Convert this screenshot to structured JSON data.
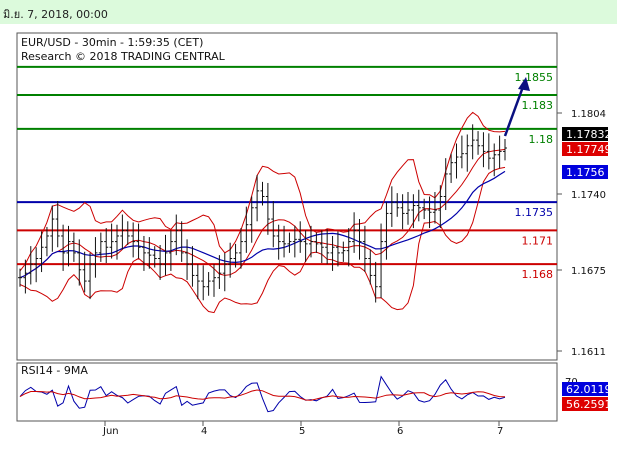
{
  "header": {
    "date_text": "มิ.ย. 7, 2018, 00:00"
  },
  "chart": {
    "title_line1": "EUR/USD - 30min - 1:59:35 (CET)",
    "title_line2": "Research © 2018 TRADING CENTRAL",
    "rsi_title": "RSI14 - 9MA"
  },
  "chart_data": [
    {
      "type": "candlestick",
      "title": "EUR/USD - 30min - 1:59:35 (CET)",
      "ylim": [
        1.1595,
        1.1885
      ],
      "price_ticks": [
        "1.1804",
        "1.1740",
        "1.1675",
        "1.1611"
      ],
      "x_tick_labels": [
        "Jun",
        "4",
        "5",
        "6",
        "7"
      ],
      "levels": [
        {
          "value": 1.1855,
          "label": "1.1855",
          "color": "#008000"
        },
        {
          "value": 1.183,
          "label": "1.183",
          "color": "#008000"
        },
        {
          "value": 1.18,
          "label": "1.18",
          "color": "#008000"
        },
        {
          "value": 1.1735,
          "label": "1.1735",
          "color": "#0000aa"
        },
        {
          "value": 1.171,
          "label": "1.171",
          "color": "#cc0000"
        },
        {
          "value": 1.168,
          "label": "1.168",
          "color": "#cc0000"
        }
      ],
      "current_price": {
        "value": 1.17832,
        "label": "1.17832",
        "color": "#000000"
      },
      "red_tag": {
        "value": 1.17749,
        "label": "1.17749",
        "color": "#dd0000"
      },
      "blue_tag": {
        "value": 1.1756,
        "label": "1.1756",
        "color": "#0000dd"
      },
      "price_close": [
        1.1668,
        1.1672,
        1.168,
        1.1685,
        1.1695,
        1.1705,
        1.172,
        1.1705,
        1.169,
        1.17,
        1.169,
        1.1675,
        1.1665,
        1.168,
        1.169,
        1.17,
        1.1695,
        1.17,
        1.1705,
        1.171,
        1.1705,
        1.17,
        1.1695,
        1.169,
        1.1688,
        1.1685,
        1.168,
        1.169,
        1.17,
        1.171,
        1.169,
        1.168,
        1.167,
        1.1665,
        1.166,
        1.1665,
        1.1668,
        1.1672,
        1.168,
        1.1685,
        1.169,
        1.17,
        1.1715,
        1.173,
        1.1745,
        1.174,
        1.172,
        1.1705,
        1.17,
        1.1698,
        1.17,
        1.1702,
        1.17,
        1.1698,
        1.17,
        1.1698,
        1.1695,
        1.169,
        1.1695,
        1.169,
        1.1692,
        1.17,
        1.171,
        1.17,
        1.1685,
        1.167,
        1.166,
        1.17,
        1.1725,
        1.1735,
        1.173,
        1.1725,
        1.1728,
        1.1732,
        1.173,
        1.1728,
        1.1726,
        1.1728,
        1.174,
        1.176,
        1.177,
        1.1775,
        1.1778,
        1.1785,
        1.179,
        1.1785,
        1.178,
        1.1774,
        1.1777,
        1.178,
        1.1783
      ],
      "rsi_levels": [
        "70"
      ],
      "rsi_value": {
        "value": 62.0119,
        "label": "62.0119"
      },
      "rsi_ma_value": {
        "value": 56.2591,
        "label": "56.2591"
      }
    }
  ]
}
